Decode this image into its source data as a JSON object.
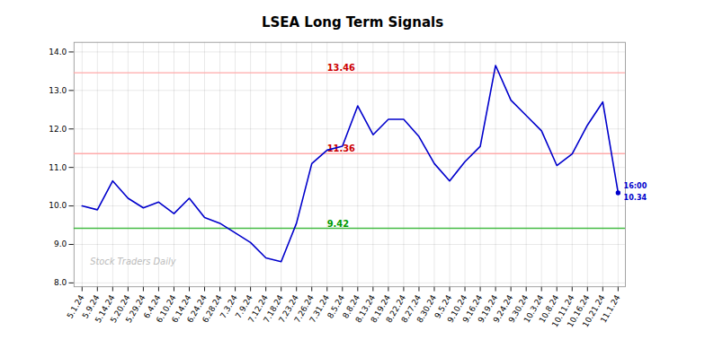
{
  "chart_data": {
    "type": "line",
    "title": "LSEA Long Term Signals",
    "color": "#0000cc",
    "marker": "last",
    "grid": true,
    "categories": [
      "5.1.24",
      "5.9.24",
      "5.14.24",
      "5.20.24",
      "5.29.24",
      "6.4.24",
      "6.10.24",
      "6.14.24",
      "6.24.24",
      "6.28.24",
      "7.3.24",
      "7.9.24",
      "7.12.24",
      "7.18.24",
      "7.23.24",
      "7.26.24",
      "7.31.24",
      "8.5.24",
      "8.8.24",
      "8.13.24",
      "8.19.24",
      "8.22.24",
      "8.27.24",
      "8.30.24",
      "9.5.24",
      "9.10.24",
      "9.16.24",
      "9.19.24",
      "9.24.24",
      "9.30.24",
      "10.3.24",
      "10.8.24",
      "10.11.24",
      "10.16.24",
      "10.21.24",
      "11.1.24"
    ],
    "values": [
      10.0,
      9.9,
      10.65,
      10.2,
      9.95,
      10.1,
      9.8,
      10.2,
      9.7,
      9.55,
      9.3,
      9.05,
      8.65,
      8.55,
      9.55,
      11.1,
      11.45,
      11.55,
      12.6,
      11.85,
      12.25,
      12.25,
      11.8,
      11.1,
      10.65,
      11.15,
      11.55,
      13.65,
      12.75,
      12.35,
      11.95,
      11.05,
      11.35,
      12.1,
      12.7,
      10.34
    ],
    "ylim": [
      7.9,
      14.25
    ],
    "yticks": [
      8,
      9,
      10,
      11,
      12,
      13,
      14
    ],
    "hlines": [
      {
        "value": 13.46,
        "color": "#ffaaaa",
        "label": "13.46",
        "label_color": "#cc0000"
      },
      {
        "value": 11.36,
        "color": "#ffaaaa",
        "label": "11.36",
        "label_color": "#cc0000"
      },
      {
        "value": 9.42,
        "color": "#44bb44",
        "label": "9.42",
        "label_color": "#009900"
      }
    ],
    "last_point_labels": [
      "16:00",
      "10.34"
    ],
    "annotations": [
      {
        "text": "Stock Traders Daily",
        "color": "#bbbbbb"
      }
    ]
  }
}
